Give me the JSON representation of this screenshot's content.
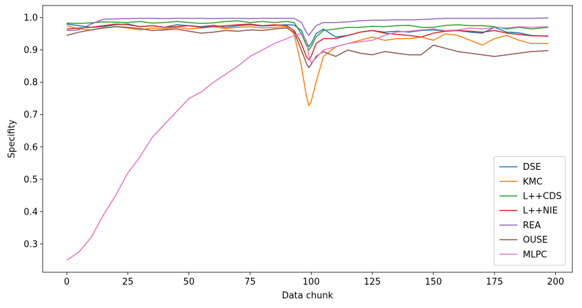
{
  "chart_data": {
    "type": "line",
    "title": "",
    "xlabel": "Data chunk",
    "ylabel": "Specifity",
    "xlim": [
      -9.85,
      206.85
    ],
    "ylim": [
      0.2125,
      1.0375
    ],
    "xticks": [
      0,
      25,
      50,
      75,
      100,
      125,
      150,
      175,
      200
    ],
    "xtick_labels": [
      "0",
      "25",
      "50",
      "75",
      "100",
      "125",
      "150",
      "175",
      "200"
    ],
    "yticks": [
      0.3,
      0.4,
      0.5,
      0.6,
      0.7,
      0.8,
      0.9,
      1.0
    ],
    "ytick_labels": [
      "0.3",
      "0.4",
      "0.5",
      "0.6",
      "0.7",
      "0.8",
      "0.9",
      "1.0"
    ],
    "grid": false,
    "legend_position": "lower-right",
    "x": [
      0,
      5,
      10,
      15,
      20,
      25,
      30,
      35,
      40,
      45,
      50,
      55,
      60,
      65,
      70,
      75,
      80,
      85,
      90,
      93,
      96,
      98,
      99,
      100,
      102,
      105,
      110,
      115,
      120,
      125,
      130,
      135,
      140,
      145,
      150,
      155,
      160,
      165,
      170,
      175,
      180,
      185,
      190,
      197
    ],
    "series": [
      {
        "name": "DSE",
        "color": "#1f77b4",
        "values": [
          0.98,
          0.975,
          0.97,
          0.972,
          0.978,
          0.98,
          0.972,
          0.975,
          0.97,
          0.978,
          0.975,
          0.972,
          0.976,
          0.97,
          0.975,
          0.978,
          0.974,
          0.976,
          0.978,
          0.977,
          0.96,
          0.925,
          0.91,
          0.92,
          0.95,
          0.965,
          0.94,
          0.945,
          0.955,
          0.96,
          0.955,
          0.958,
          0.955,
          0.96,
          0.962,
          0.958,
          0.96,
          0.955,
          0.952,
          0.97,
          0.955,
          0.953,
          0.945,
          0.942
        ]
      },
      {
        "name": "KMC",
        "color": "#ff7f0e",
        "values": [
          0.975,
          0.965,
          0.962,
          0.968,
          0.972,
          0.968,
          0.962,
          0.968,
          0.965,
          0.97,
          0.965,
          0.968,
          0.972,
          0.966,
          0.97,
          0.972,
          0.968,
          0.97,
          0.972,
          0.95,
          0.85,
          0.76,
          0.728,
          0.74,
          0.8,
          0.88,
          0.91,
          0.92,
          0.93,
          0.94,
          0.93,
          0.935,
          0.935,
          0.94,
          0.93,
          0.95,
          0.945,
          0.93,
          0.915,
          0.935,
          0.945,
          0.93,
          0.92,
          0.92
        ]
      },
      {
        "name": "L++CDS",
        "color": "#2ca02c",
        "values": [
          0.983,
          0.982,
          0.984,
          0.987,
          0.986,
          0.985,
          0.988,
          0.983,
          0.985,
          0.988,
          0.985,
          0.982,
          0.984,
          0.988,
          0.99,
          0.985,
          0.988,
          0.985,
          0.988,
          0.985,
          0.95,
          0.915,
          0.9,
          0.91,
          0.94,
          0.96,
          0.965,
          0.97,
          0.97,
          0.973,
          0.972,
          0.975,
          0.976,
          0.97,
          0.97,
          0.976,
          0.978,
          0.975,
          0.975,
          0.972,
          0.965,
          0.97,
          0.965,
          0.97
        ]
      },
      {
        "name": "L++NIE",
        "color": "#d62728",
        "values": [
          0.965,
          0.968,
          0.97,
          0.975,
          0.98,
          0.978,
          0.972,
          0.975,
          0.97,
          0.972,
          0.975,
          0.97,
          0.972,
          0.975,
          0.978,
          0.98,
          0.975,
          0.978,
          0.975,
          0.96,
          0.92,
          0.88,
          0.87,
          0.88,
          0.92,
          0.935,
          0.935,
          0.945,
          0.955,
          0.96,
          0.952,
          0.948,
          0.945,
          0.94,
          0.952,
          0.958,
          0.96,
          0.958,
          0.955,
          0.96,
          0.952,
          0.948,
          0.944,
          0.943
        ]
      },
      {
        "name": "REA",
        "color": "#9467bd",
        "values": [
          0.96,
          0.962,
          0.98,
          0.995,
          0.996,
          0.997,
          0.998,
          0.998,
          0.997,
          0.998,
          0.998,
          0.998,
          0.997,
          0.998,
          0.998,
          0.997,
          0.998,
          0.998,
          0.998,
          0.998,
          0.985,
          0.955,
          0.945,
          0.955,
          0.975,
          0.985,
          0.985,
          0.987,
          0.99,
          0.992,
          0.992,
          0.993,
          0.993,
          0.994,
          0.996,
          0.998,
          0.998,
          0.998,
          0.998,
          0.998,
          0.998,
          0.998,
          0.998,
          0.999
        ]
      },
      {
        "name": "OUSE",
        "color": "#8c564b",
        "values": [
          0.945,
          0.955,
          0.962,
          0.968,
          0.972,
          0.97,
          0.966,
          0.96,
          0.962,
          0.965,
          0.958,
          0.952,
          0.955,
          0.96,
          0.958,
          0.962,
          0.96,
          0.965,
          0.968,
          0.955,
          0.9,
          0.86,
          0.845,
          0.855,
          0.88,
          0.895,
          0.88,
          0.9,
          0.89,
          0.885,
          0.895,
          0.89,
          0.885,
          0.885,
          0.915,
          0.905,
          0.895,
          0.89,
          0.885,
          0.88,
          0.885,
          0.89,
          0.895,
          0.898
        ]
      },
      {
        "name": "MLPC",
        "color": "#e377c2",
        "values": [
          0.25,
          0.275,
          0.32,
          0.39,
          0.45,
          0.52,
          0.57,
          0.63,
          0.67,
          0.71,
          0.75,
          0.77,
          0.8,
          0.825,
          0.85,
          0.88,
          0.9,
          0.92,
          0.935,
          0.945,
          0.95,
          0.93,
          0.885,
          0.86,
          0.875,
          0.9,
          0.91,
          0.92,
          0.925,
          0.93,
          0.945,
          0.955,
          0.958,
          0.962,
          0.965,
          0.96,
          0.962,
          0.968,
          0.965,
          0.97,
          0.968,
          0.972,
          0.97,
          0.972
        ]
      }
    ]
  }
}
